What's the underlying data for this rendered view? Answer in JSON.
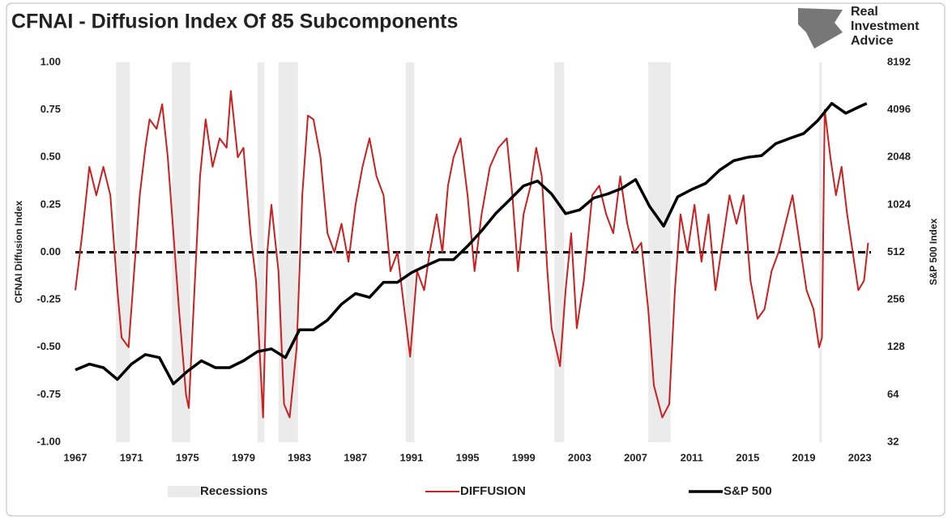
{
  "chart_data": {
    "type": "line",
    "title": "CFNAI - Diffusion Index Of 85 Subcomponents",
    "logo": [
      "Real",
      "Investment",
      "Advice"
    ],
    "ylabel": "CFNAI Diffusion Index",
    "y2label": "S&P 500 Index",
    "xlim": [
      1967,
      2023.8
    ],
    "xticks": [
      1967,
      1971,
      1975,
      1979,
      1983,
      1987,
      1991,
      1995,
      1999,
      2003,
      2007,
      2011,
      2015,
      2019,
      2023
    ],
    "ylim": [
      -1,
      1
    ],
    "yticks": [
      {
        "value": 1,
        "label": "1.00"
      },
      {
        "value": 0.75,
        "label": "0.75"
      },
      {
        "value": 0.5,
        "label": "0.50"
      },
      {
        "value": 0.25,
        "label": "0.25"
      },
      {
        "value": 0,
        "label": "0.00"
      },
      {
        "value": -0.25,
        "label": "-0.25"
      },
      {
        "value": -0.5,
        "label": "-0.50"
      },
      {
        "value": -0.75,
        "label": "-0.75"
      },
      {
        "value": -1,
        "label": "-1.00"
      }
    ],
    "y2lim": [
      32,
      8192
    ],
    "y2scale": "log",
    "y2ticks": [
      8192,
      4096,
      2048,
      1024,
      512,
      256,
      128,
      64,
      32
    ],
    "hline": 0,
    "recessions": {
      "name": "Recessions",
      "color": "#ebebeb",
      "ranges": [
        [
          1969.9,
          1970.9
        ],
        [
          1973.9,
          1975.2
        ],
        [
          1980.0,
          1980.5
        ],
        [
          1981.5,
          1982.9
        ],
        [
          1990.6,
          1991.2
        ],
        [
          2001.2,
          2001.9
        ],
        [
          2007.9,
          2009.5
        ],
        [
          2020.1,
          2020.3
        ]
      ]
    },
    "series": [
      {
        "name": "DIFFUSION",
        "color": "#cc1f1f",
        "x": [
          1967.0,
          1967.5,
          1968.0,
          1968.5,
          1969.0,
          1969.5,
          1970.0,
          1970.3,
          1970.8,
          1971.2,
          1971.6,
          1972.0,
          1972.3,
          1972.8,
          1973.2,
          1973.6,
          1974.0,
          1974.4,
          1974.9,
          1975.1,
          1975.5,
          1975.9,
          1976.3,
          1976.8,
          1977.3,
          1977.8,
          1978.1,
          1978.6,
          1979.0,
          1979.5,
          1979.9,
          1980.4,
          1980.7,
          1981.0,
          1981.5,
          1981.9,
          1982.3,
          1982.8,
          1983.2,
          1983.6,
          1984.0,
          1984.5,
          1985.0,
          1985.5,
          1986.0,
          1986.5,
          1987.0,
          1987.5,
          1988.0,
          1988.5,
          1989.0,
          1989.5,
          1990.0,
          1990.4,
          1990.9,
          1991.4,
          1991.9,
          1992.3,
          1992.8,
          1993.2,
          1993.6,
          1994.0,
          1994.5,
          1995.0,
          1995.5,
          1996.0,
          1996.6,
          1997.2,
          1997.8,
          1998.2,
          1998.6,
          1999.0,
          1999.5,
          1999.9,
          2000.3,
          2000.7,
          2001.0,
          2001.6,
          2002.0,
          2002.4,
          2002.8,
          2003.3,
          2003.9,
          2004.4,
          2004.9,
          2005.4,
          2005.9,
          2006.4,
          2006.9,
          2007.4,
          2007.9,
          2008.3,
          2008.9,
          2009.4,
          2009.8,
          2010.2,
          2010.7,
          2011.2,
          2011.7,
          2012.2,
          2012.7,
          2013.2,
          2013.7,
          2014.2,
          2014.7,
          2015.2,
          2015.7,
          2016.2,
          2016.7,
          2017.2,
          2017.7,
          2018.2,
          2018.7,
          2019.2,
          2019.7,
          2020.1,
          2020.3,
          2020.5,
          2020.9,
          2021.3,
          2021.7,
          2022.1,
          2022.5,
          2022.9,
          2023.3,
          2023.6
        ],
        "values": [
          -0.2,
          0.1,
          0.45,
          0.3,
          0.45,
          0.3,
          -0.2,
          -0.45,
          -0.5,
          -0.1,
          0.3,
          0.55,
          0.7,
          0.65,
          0.78,
          0.5,
          0.1,
          -0.3,
          -0.75,
          -0.82,
          -0.2,
          0.4,
          0.7,
          0.45,
          0.6,
          0.55,
          0.85,
          0.5,
          0.55,
          0.1,
          -0.15,
          -0.87,
          0.0,
          0.25,
          -0.1,
          -0.8,
          -0.87,
          -0.5,
          0.3,
          0.72,
          0.7,
          0.5,
          0.1,
          0.0,
          0.15,
          -0.05,
          0.25,
          0.45,
          0.6,
          0.4,
          0.3,
          -0.1,
          0.0,
          -0.25,
          -0.55,
          -0.1,
          -0.2,
          0.0,
          0.2,
          0.0,
          0.35,
          0.5,
          0.6,
          0.3,
          -0.1,
          0.2,
          0.45,
          0.55,
          0.6,
          0.3,
          -0.1,
          0.2,
          0.35,
          0.55,
          0.4,
          -0.1,
          -0.4,
          -0.6,
          -0.2,
          0.1,
          -0.4,
          -0.15,
          0.3,
          0.35,
          0.2,
          0.1,
          0.4,
          0.15,
          0.0,
          0.05,
          -0.3,
          -0.7,
          -0.87,
          -0.8,
          -0.2,
          0.2,
          0.0,
          0.25,
          -0.05,
          0.2,
          -0.2,
          0.05,
          0.3,
          0.15,
          0.3,
          -0.15,
          -0.35,
          -0.3,
          -0.1,
          0.0,
          0.15,
          0.3,
          0.05,
          -0.2,
          -0.3,
          -0.5,
          -0.45,
          0.75,
          0.5,
          0.3,
          0.45,
          0.2,
          0.0,
          -0.2,
          -0.15,
          0.05
        ]
      },
      {
        "name": "S&P 500",
        "color": "#000000",
        "axis": "y2",
        "x": [
          1967,
          1968,
          1969,
          1970,
          1971,
          1972,
          1973,
          1974,
          1975,
          1976,
          1977,
          1978,
          1979,
          1980,
          1981,
          1982,
          1983,
          1984,
          1985,
          1986,
          1987,
          1988,
          1989,
          1990,
          1991,
          1992,
          1993,
          1994,
          1995,
          1996,
          1997,
          1998,
          1999,
          2000,
          2001,
          2002,
          2003,
          2004,
          2005,
          2006,
          2007,
          2008,
          2009,
          2010,
          2011,
          2012,
          2013,
          2014,
          2015,
          2016,
          2017,
          2018,
          2019,
          2020,
          2021,
          2022,
          2023,
          2023.5
        ],
        "values": [
          92,
          100,
          95,
          80,
          100,
          115,
          110,
          75,
          90,
          105,
          95,
          95,
          105,
          120,
          125,
          110,
          165,
          165,
          190,
          240,
          280,
          265,
          330,
          330,
          380,
          420,
          460,
          460,
          560,
          700,
          900,
          1100,
          1350,
          1450,
          1200,
          900,
          950,
          1130,
          1200,
          1300,
          1480,
          1000,
          750,
          1150,
          1280,
          1400,
          1700,
          1950,
          2050,
          2100,
          2500,
          2700,
          2900,
          3500,
          4500,
          3900,
          4300,
          4500
        ]
      }
    ]
  }
}
